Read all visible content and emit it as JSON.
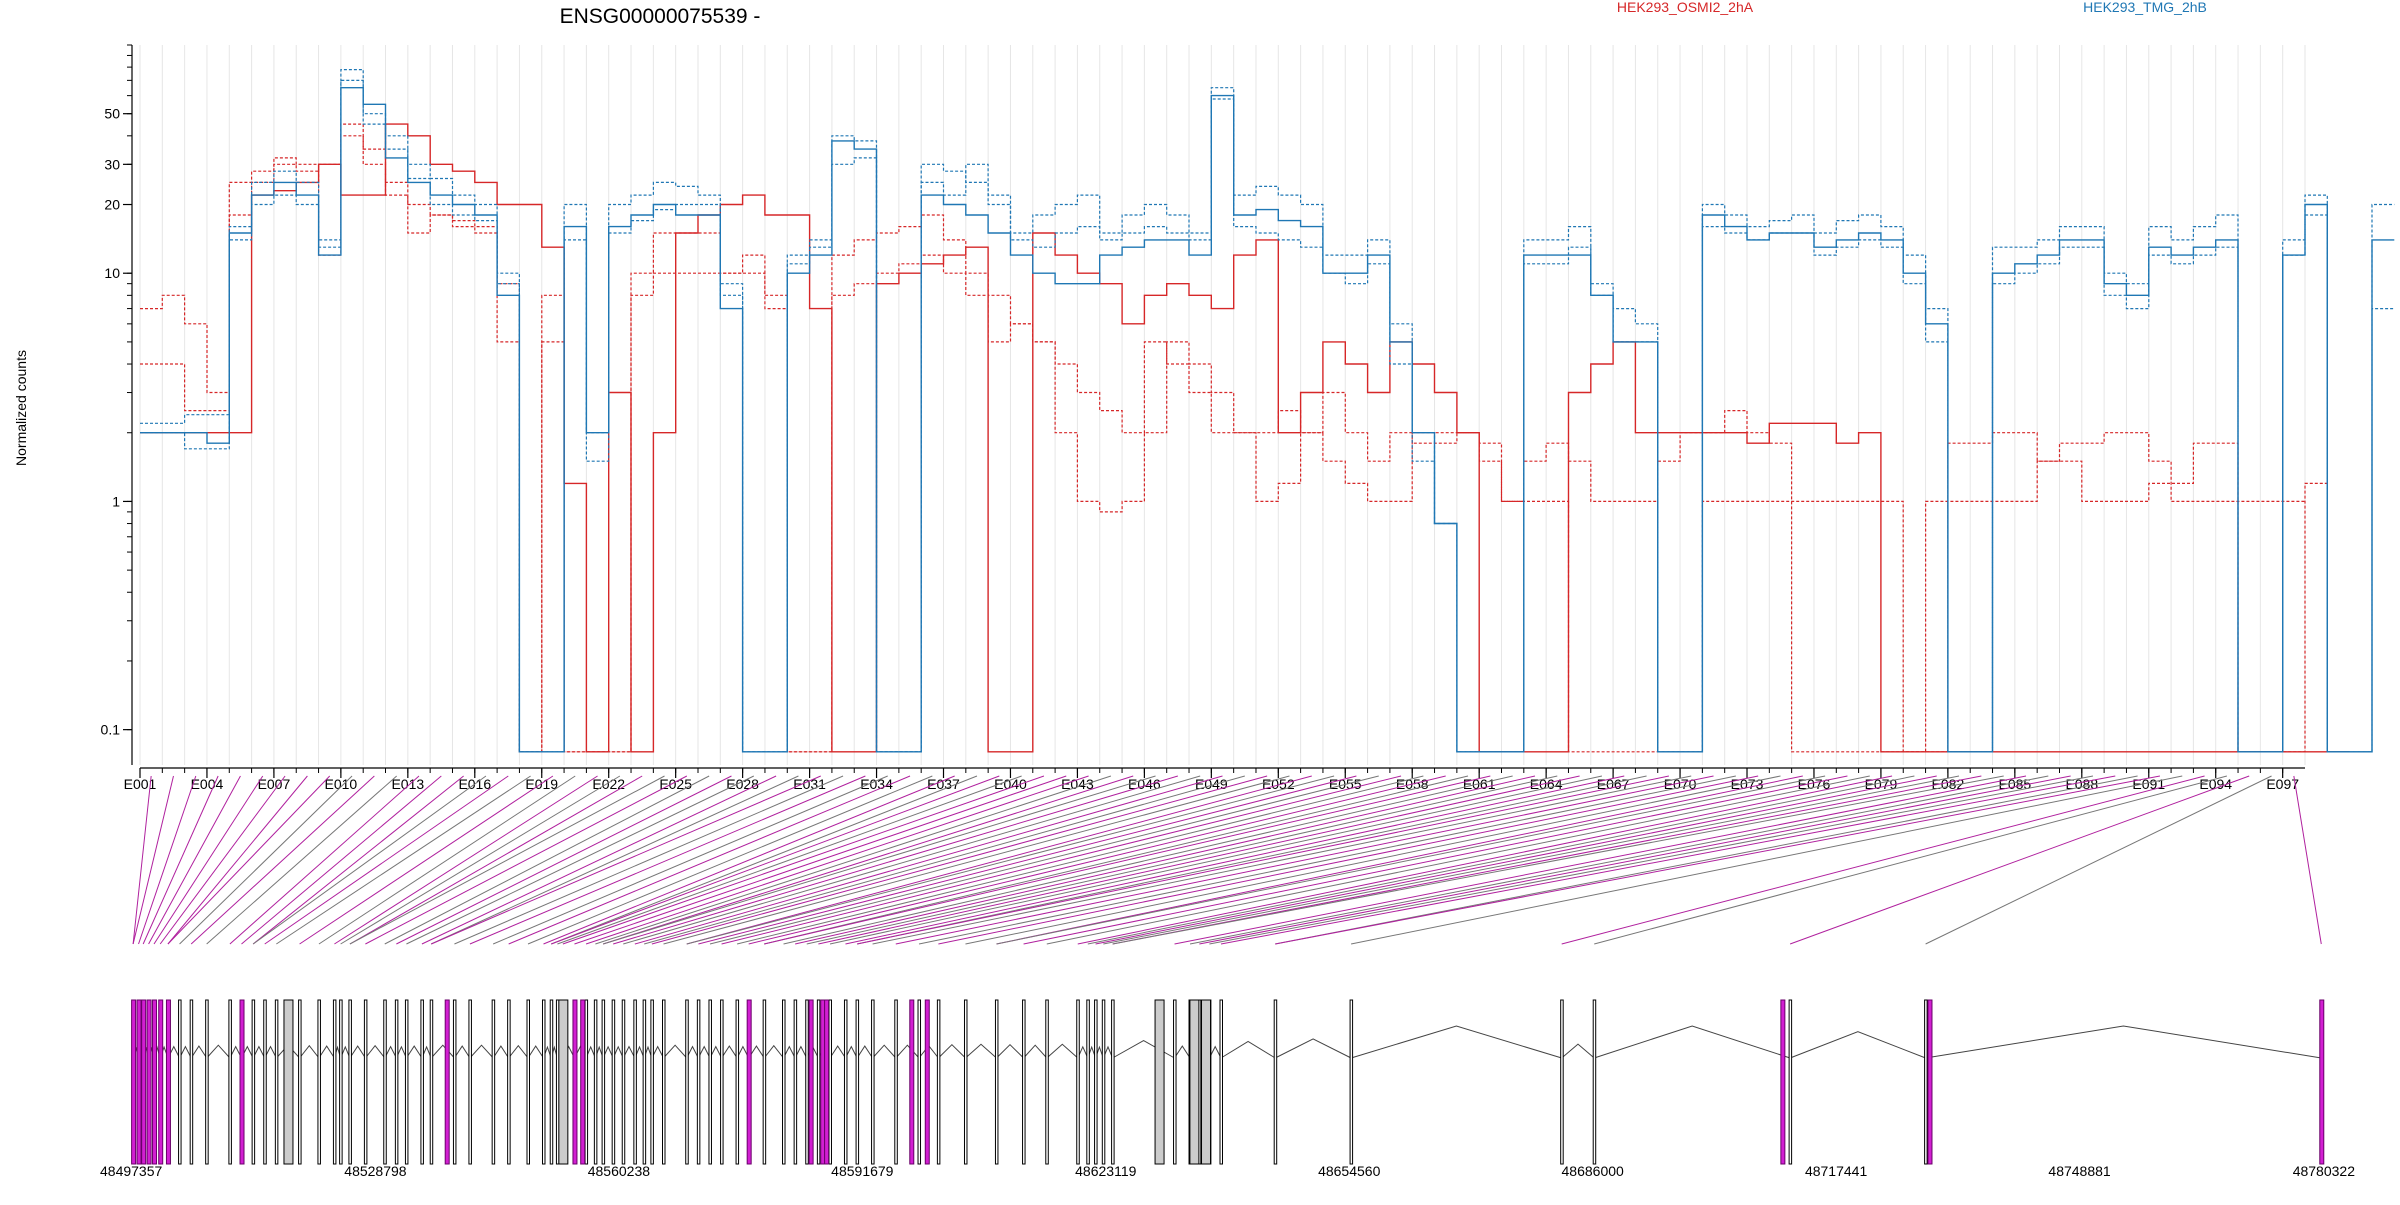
{
  "chart_data": {
    "type": "line",
    "title": "ENSG00000075539 -",
    "ylabel": "Normalized counts",
    "yscale": "log",
    "ylim": [
      0.07,
      100
    ],
    "yticks": [
      0.1,
      1,
      10,
      20,
      30,
      50
    ],
    "ytick_labels": [
      "0.1",
      "1",
      "10",
      "20",
      "30",
      "50"
    ],
    "legend": [
      {
        "name": "HEK293_OSMI2_2hA",
        "color": "#d62728"
      },
      {
        "name": "HEK293_TMG_2hB",
        "color": "#1f77b4"
      }
    ],
    "legend_placement": "top",
    "bin_labels": [
      "E001",
      "E004",
      "E007",
      "E010",
      "E013",
      "E016",
      "E019",
      "E022",
      "E025",
      "E028",
      "E031",
      "E034",
      "E037",
      "E040",
      "E043",
      "E046",
      "E049",
      "E052",
      "E055",
      "E058",
      "E061",
      "E064",
      "E067",
      "E070",
      "E073",
      "E076",
      "E079",
      "E082",
      "E085",
      "E088",
      "E091",
      "E094",
      "E097"
    ],
    "n_bins": 97,
    "series": [
      {
        "name": "HEK293_OSMI2_2hA",
        "color": "#d62728",
        "style": "solid",
        "values": [
          2.0,
          2.0,
          2.0,
          2.0,
          2.0,
          22,
          23,
          25,
          30,
          22,
          22,
          45,
          40,
          30,
          28,
          25,
          20,
          20,
          13,
          1.2,
          0.08,
          3,
          0.08,
          2,
          15,
          18,
          20,
          22,
          18,
          18,
          7,
          0.08,
          0.08,
          9,
          10,
          11,
          12,
          13,
          0.08,
          0.08,
          15,
          12,
          10,
          9,
          6,
          8,
          9,
          8,
          7,
          12,
          14,
          2,
          3,
          5,
          4,
          3,
          5,
          4,
          3,
          2,
          0.08,
          0.08,
          0.08,
          0.08,
          3,
          4,
          5,
          2,
          2,
          2,
          2,
          2,
          1.8,
          2.2,
          2.2,
          2.2,
          1.8,
          2.0,
          0.08,
          0.08,
          0.08,
          0.08,
          0.08,
          0.08,
          0.08,
          0.08,
          0.08,
          0.08,
          0.08,
          0.08,
          0.08,
          0.08,
          0.08,
          0.08,
          0.08,
          0.08,
          0.08,
          0.08,
          0.08
        ]
      },
      {
        "name": "HEK293_OSMI2_2hA",
        "color": "#d62728",
        "style": "dashed",
        "values": [
          7.0,
          8.0,
          6.0,
          3.0,
          25,
          28,
          32,
          30,
          12,
          40,
          30,
          22,
          15,
          18,
          17,
          16,
          9,
          0.08,
          5,
          0.08,
          0.08,
          0.08,
          8,
          10,
          10,
          10,
          10,
          10,
          7,
          0.08,
          0.08,
          8,
          9,
          10,
          11,
          12,
          10,
          8,
          5,
          6,
          5,
          4,
          3,
          2.5,
          2,
          5,
          4,
          3,
          2,
          2,
          2,
          2.5,
          2,
          1.5,
          1.2,
          1,
          1,
          2,
          2,
          2,
          1.5,
          1,
          1,
          1,
          0.08,
          0.08,
          0.08,
          0.08,
          0.08,
          0.08,
          1,
          1,
          1,
          1,
          1,
          1,
          1,
          1,
          1,
          0.08,
          1,
          1,
          1,
          1,
          1,
          1.5,
          1.5,
          1,
          1,
          1,
          1.2,
          1.2,
          1.8,
          1.8,
          0.08,
          0.08,
          0.08,
          1.2
        ]
      },
      {
        "name": "HEK293_OSMI2_2hA",
        "color": "#d62728",
        "style": "dashed",
        "values": [
          4.0,
          4.0,
          2.5,
          2.5,
          18,
          25,
          30,
          28,
          30,
          45,
          35,
          25,
          20,
          18,
          16,
          15,
          5,
          0.08,
          8,
          0.08,
          0.08,
          0.08,
          10,
          15,
          15,
          15,
          10,
          12,
          8,
          0.08,
          0.08,
          12,
          14,
          15,
          16,
          18,
          14,
          10,
          8,
          6,
          5,
          2,
          1,
          0.9,
          1,
          2,
          5,
          4,
          3,
          2,
          1,
          1.2,
          2,
          3,
          2,
          1.5,
          2,
          1.8,
          1.8,
          2,
          1.8,
          1,
          1.5,
          1.8,
          1.5,
          1,
          1,
          1,
          1.5,
          2,
          2,
          2.5,
          2,
          1.8,
          0.08,
          0.08,
          0.08,
          0.08,
          0.08,
          0.08,
          0.08,
          1.8,
          1.8,
          2,
          2,
          1.5,
          1.8,
          1.8,
          2,
          2,
          1.5,
          1,
          1,
          1,
          1,
          1,
          1
        ]
      },
      {
        "name": "HEK293_TMG_2hB",
        "color": "#1f77b4",
        "style": "solid",
        "values": [
          2.0,
          2.0,
          2.0,
          1.8,
          15,
          22,
          25,
          22,
          12,
          65,
          55,
          32,
          25,
          22,
          20,
          18,
          8,
          0.08,
          0.08,
          16,
          2,
          16,
          18,
          20,
          18,
          18,
          7,
          0.08,
          0.08,
          10,
          12,
          38,
          35,
          0.08,
          0.08,
          22,
          20,
          18,
          15,
          12,
          10,
          9,
          9,
          12,
          13,
          14,
          14,
          12,
          60,
          18,
          19,
          17,
          16,
          10,
          10,
          12,
          5,
          2,
          0.8,
          0.08,
          0.08,
          0.08,
          12,
          12,
          12,
          8,
          5,
          5,
          0.08,
          0.08,
          18,
          16,
          14,
          15,
          15,
          13,
          14,
          15,
          14,
          10,
          6,
          0.08,
          0.08,
          10,
          11,
          12,
          14,
          14,
          9,
          8,
          13,
          12,
          13,
          14,
          0.08,
          0.08,
          12,
          20,
          0.08,
          0.08,
          14
        ]
      },
      {
        "name": "HEK293_TMG_2hB",
        "color": "#1f77b4",
        "style": "dashed",
        "values": [
          2.2,
          2.2,
          2.4,
          2.4,
          16,
          25,
          28,
          25,
          14,
          78,
          50,
          40,
          30,
          26,
          22,
          20,
          10,
          0.08,
          0.08,
          20,
          2,
          20,
          22,
          25,
          24,
          22,
          8,
          0.08,
          0.08,
          12,
          14,
          40,
          38,
          0.08,
          0.08,
          30,
          28,
          25,
          22,
          15,
          18,
          20,
          22,
          15,
          18,
          20,
          18,
          15,
          65,
          22,
          24,
          22,
          20,
          12,
          12,
          14,
          6,
          2,
          0.8,
          0.08,
          0.08,
          0.08,
          14,
          14,
          16,
          9,
          7,
          6,
          0.08,
          0.08,
          20,
          18,
          16,
          17,
          18,
          15,
          17,
          18,
          16,
          12,
          7,
          0.08,
          0.08,
          13,
          13,
          14,
          16,
          16,
          10,
          9,
          16,
          14,
          16,
          18,
          0.08,
          0.08,
          14,
          22,
          0.08,
          0.08,
          20
        ]
      },
      {
        "name": "HEK293_TMG_2hB",
        "color": "#1f77b4",
        "style": "dashed",
        "values": [
          2.0,
          2.0,
          1.7,
          1.7,
          14,
          20,
          22,
          20,
          13,
          70,
          45,
          35,
          26,
          20,
          18,
          17,
          9,
          0.08,
          0.08,
          14,
          1.5,
          15,
          17,
          19,
          20,
          20,
          9,
          0.08,
          0.08,
          11,
          13,
          30,
          32,
          0.08,
          0.08,
          25,
          22,
          30,
          20,
          14,
          13,
          15,
          16,
          14,
          15,
          16,
          15,
          14,
          58,
          16,
          15,
          14,
          13,
          10,
          9,
          11,
          4,
          1.5,
          0.8,
          0.08,
          0.08,
          0.08,
          11,
          11,
          13,
          8,
          5,
          5,
          0.08,
          0.08,
          16,
          15,
          14,
          15,
          15,
          12,
          13,
          14,
          13,
          9,
          5,
          0.08,
          0.08,
          9,
          10,
          11,
          13,
          13,
          8,
          7,
          12,
          11,
          12,
          13,
          0.08,
          0.08,
          12,
          18,
          0.08,
          0.08,
          7
        ]
      }
    ],
    "genome_axis": {
      "tick_labels": [
        "48497357",
        "48528798",
        "48560238",
        "48591679",
        "48623119",
        "48654560",
        "48686000",
        "48717441",
        "48748881",
        "48780322"
      ],
      "range": [
        48497357,
        48780322
      ]
    },
    "exon_positions": [
      48497500,
      48498200,
      48498800,
      48499500,
      48500200,
      48501000,
      48502000,
      48503500,
      48505000,
      48507000,
      48510000,
      48511500,
      48513000,
      48514500,
      48516000,
      48519000,
      48521500,
      48523500,
      48524300,
      48525500,
      48527500,
      48530000,
      48531500,
      48532800,
      48534800,
      48536000,
      48539000,
      48541000,
      48544000,
      48546000,
      48548500,
      48550500,
      48551500,
      48552300,
      48553000,
      48554500,
      48556000,
      48557200,
      48558200,
      48559500,
      48560800,
      48562300,
      48563500,
      48564500,
      48566000,
      48569000,
      48570500,
      48572000,
      48573500,
      48575500,
      48577000,
      48579000,
      48581500,
      48583000,
      48584500,
      48586000,
      48587500,
      48589500,
      48591000,
      48593000,
      48596000,
      48599000,
      48601500,
      48605000,
      48609000,
      48612500,
      48615500,
      48619500,
      48620800,
      48621800,
      48622800,
      48624000,
      48632000,
      48634000,
      48635200,
      48636500,
      48638000,
      48645000,
      48654800,
      48682000,
      48686200,
      48711500,
      48729000,
      48780100
    ],
    "highlight_exons": [
      48497500,
      48498200,
      48498800,
      48499500,
      48500200,
      48501000,
      48502000,
      48511500,
      48538000,
      48554500,
      48555500,
      48577000,
      48585000,
      48586500,
      48587000,
      48598000,
      48600000,
      48710500,
      48729500,
      48780100
    ],
    "shaded_exons": [
      48517500,
      48553000,
      48630000,
      48634500,
      48636000
    ]
  }
}
